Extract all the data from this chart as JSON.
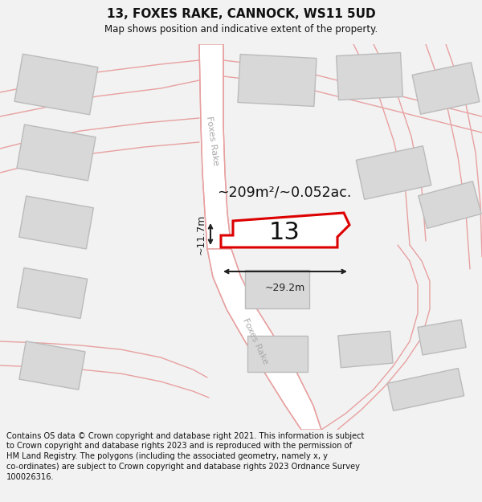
{
  "title": "13, FOXES RAKE, CANNOCK, WS11 5UD",
  "subtitle": "Map shows position and indicative extent of the property.",
  "footer_text": "Contains OS data © Crown copyright and database right 2021. This information is subject to Crown copyright and database rights 2023 and is reproduced with the permission of HM Land Registry. The polygons (including the associated geometry, namely x, y co-ordinates) are subject to Crown copyright and database rights 2023 Ordnance Survey 100026316.",
  "bg_color": "#f2f2f2",
  "map_bg": "#ffffff",
  "road_stroke": "#e8a0a0",
  "road_fill": "#ffffff",
  "building_fill": "#d8d8d8",
  "building_edge": "#bbbbbb",
  "plot_color": "#dd0000",
  "measurement_color": "#222222",
  "area_text": "~209m²/~0.052ac.",
  "width_text": "~29.2m",
  "height_text": "~11.7m",
  "plot_number": "13",
  "road_label": "Foxes Rake",
  "road_label_color": "#aaaaaa"
}
